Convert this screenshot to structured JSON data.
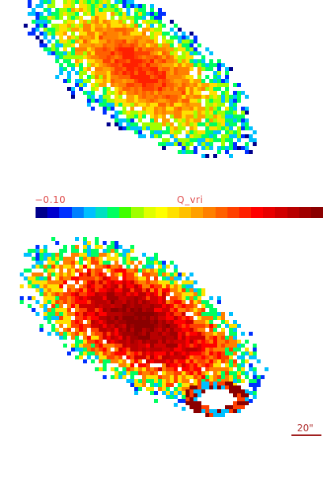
{
  "colorbar": {
    "min_label": "−0.10",
    "title": "Q_vri",
    "colors": [
      "#00008b",
      "#0000cd",
      "#0030ff",
      "#0080ff",
      "#00c0ff",
      "#00e0c0",
      "#00ff60",
      "#40ff00",
      "#a0ff00",
      "#e0ff00",
      "#ffff00",
      "#ffe000",
      "#ffc000",
      "#ffa000",
      "#ff8000",
      "#ff6000",
      "#ff4000",
      "#ff2000",
      "#ff0000",
      "#e80000",
      "#d00000",
      "#b80000",
      "#a00000",
      "#8b0000"
    ]
  },
  "scale_bar": {
    "label": "20\""
  },
  "maps": [
    {
      "name": "top-map",
      "palette": [
        "#ff2000",
        "#ff4000",
        "#ff6000",
        "#ff8000",
        "#ffa000",
        "#ffe000",
        "#a0ff00",
        "#00ff60",
        "#00c0ff",
        "#0030ff",
        "#00008b",
        "#ffffff"
      ]
    },
    {
      "name": "bottom-map",
      "palette": [
        "#8b0000",
        "#a00000",
        "#b80000",
        "#d00000",
        "#ff0000",
        "#ff4000",
        "#ff8000",
        "#ffe000",
        "#00ff60",
        "#00c0ff",
        "#0030ff",
        "#ffffff"
      ]
    }
  ]
}
